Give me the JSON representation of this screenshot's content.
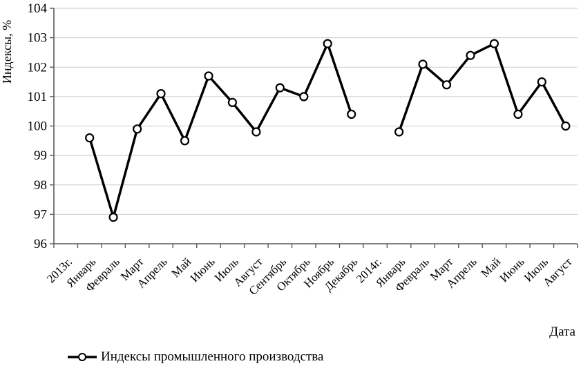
{
  "chart_data": {
    "type": "line",
    "title": "",
    "ylabel": "Индексы, %",
    "xlabel": "Дата",
    "ylim": [
      96,
      104
    ],
    "y_tick_step": 1,
    "grid": true,
    "legend_position": "bottom-left",
    "categories": [
      "2013г.",
      "Январь",
      "Февраль",
      "Март",
      "Апрель",
      "Май",
      "Июнь",
      "Июль",
      "Август",
      "Сентябрь",
      "Октябрь",
      "Ноябрь",
      "Декабрь",
      "2014г.",
      "Январь",
      "Февраль",
      "Март",
      "Апрель",
      "Май",
      "Июнь",
      "Июль",
      "Август"
    ],
    "series": [
      {
        "name": "Индексы промышленного производства",
        "marker": "open-circle",
        "values": [
          null,
          99.6,
          96.9,
          99.9,
          101.1,
          99.5,
          101.7,
          100.8,
          99.8,
          101.3,
          101.0,
          102.8,
          100.4,
          null,
          99.8,
          102.1,
          101.4,
          102.4,
          102.8,
          100.4,
          101.5,
          100.0
        ]
      }
    ],
    "colors": {
      "line": "#000000",
      "marker_fill": "#ffffff",
      "grid": "#c9c9c9",
      "axis": "#595959",
      "text": "#000000"
    }
  }
}
